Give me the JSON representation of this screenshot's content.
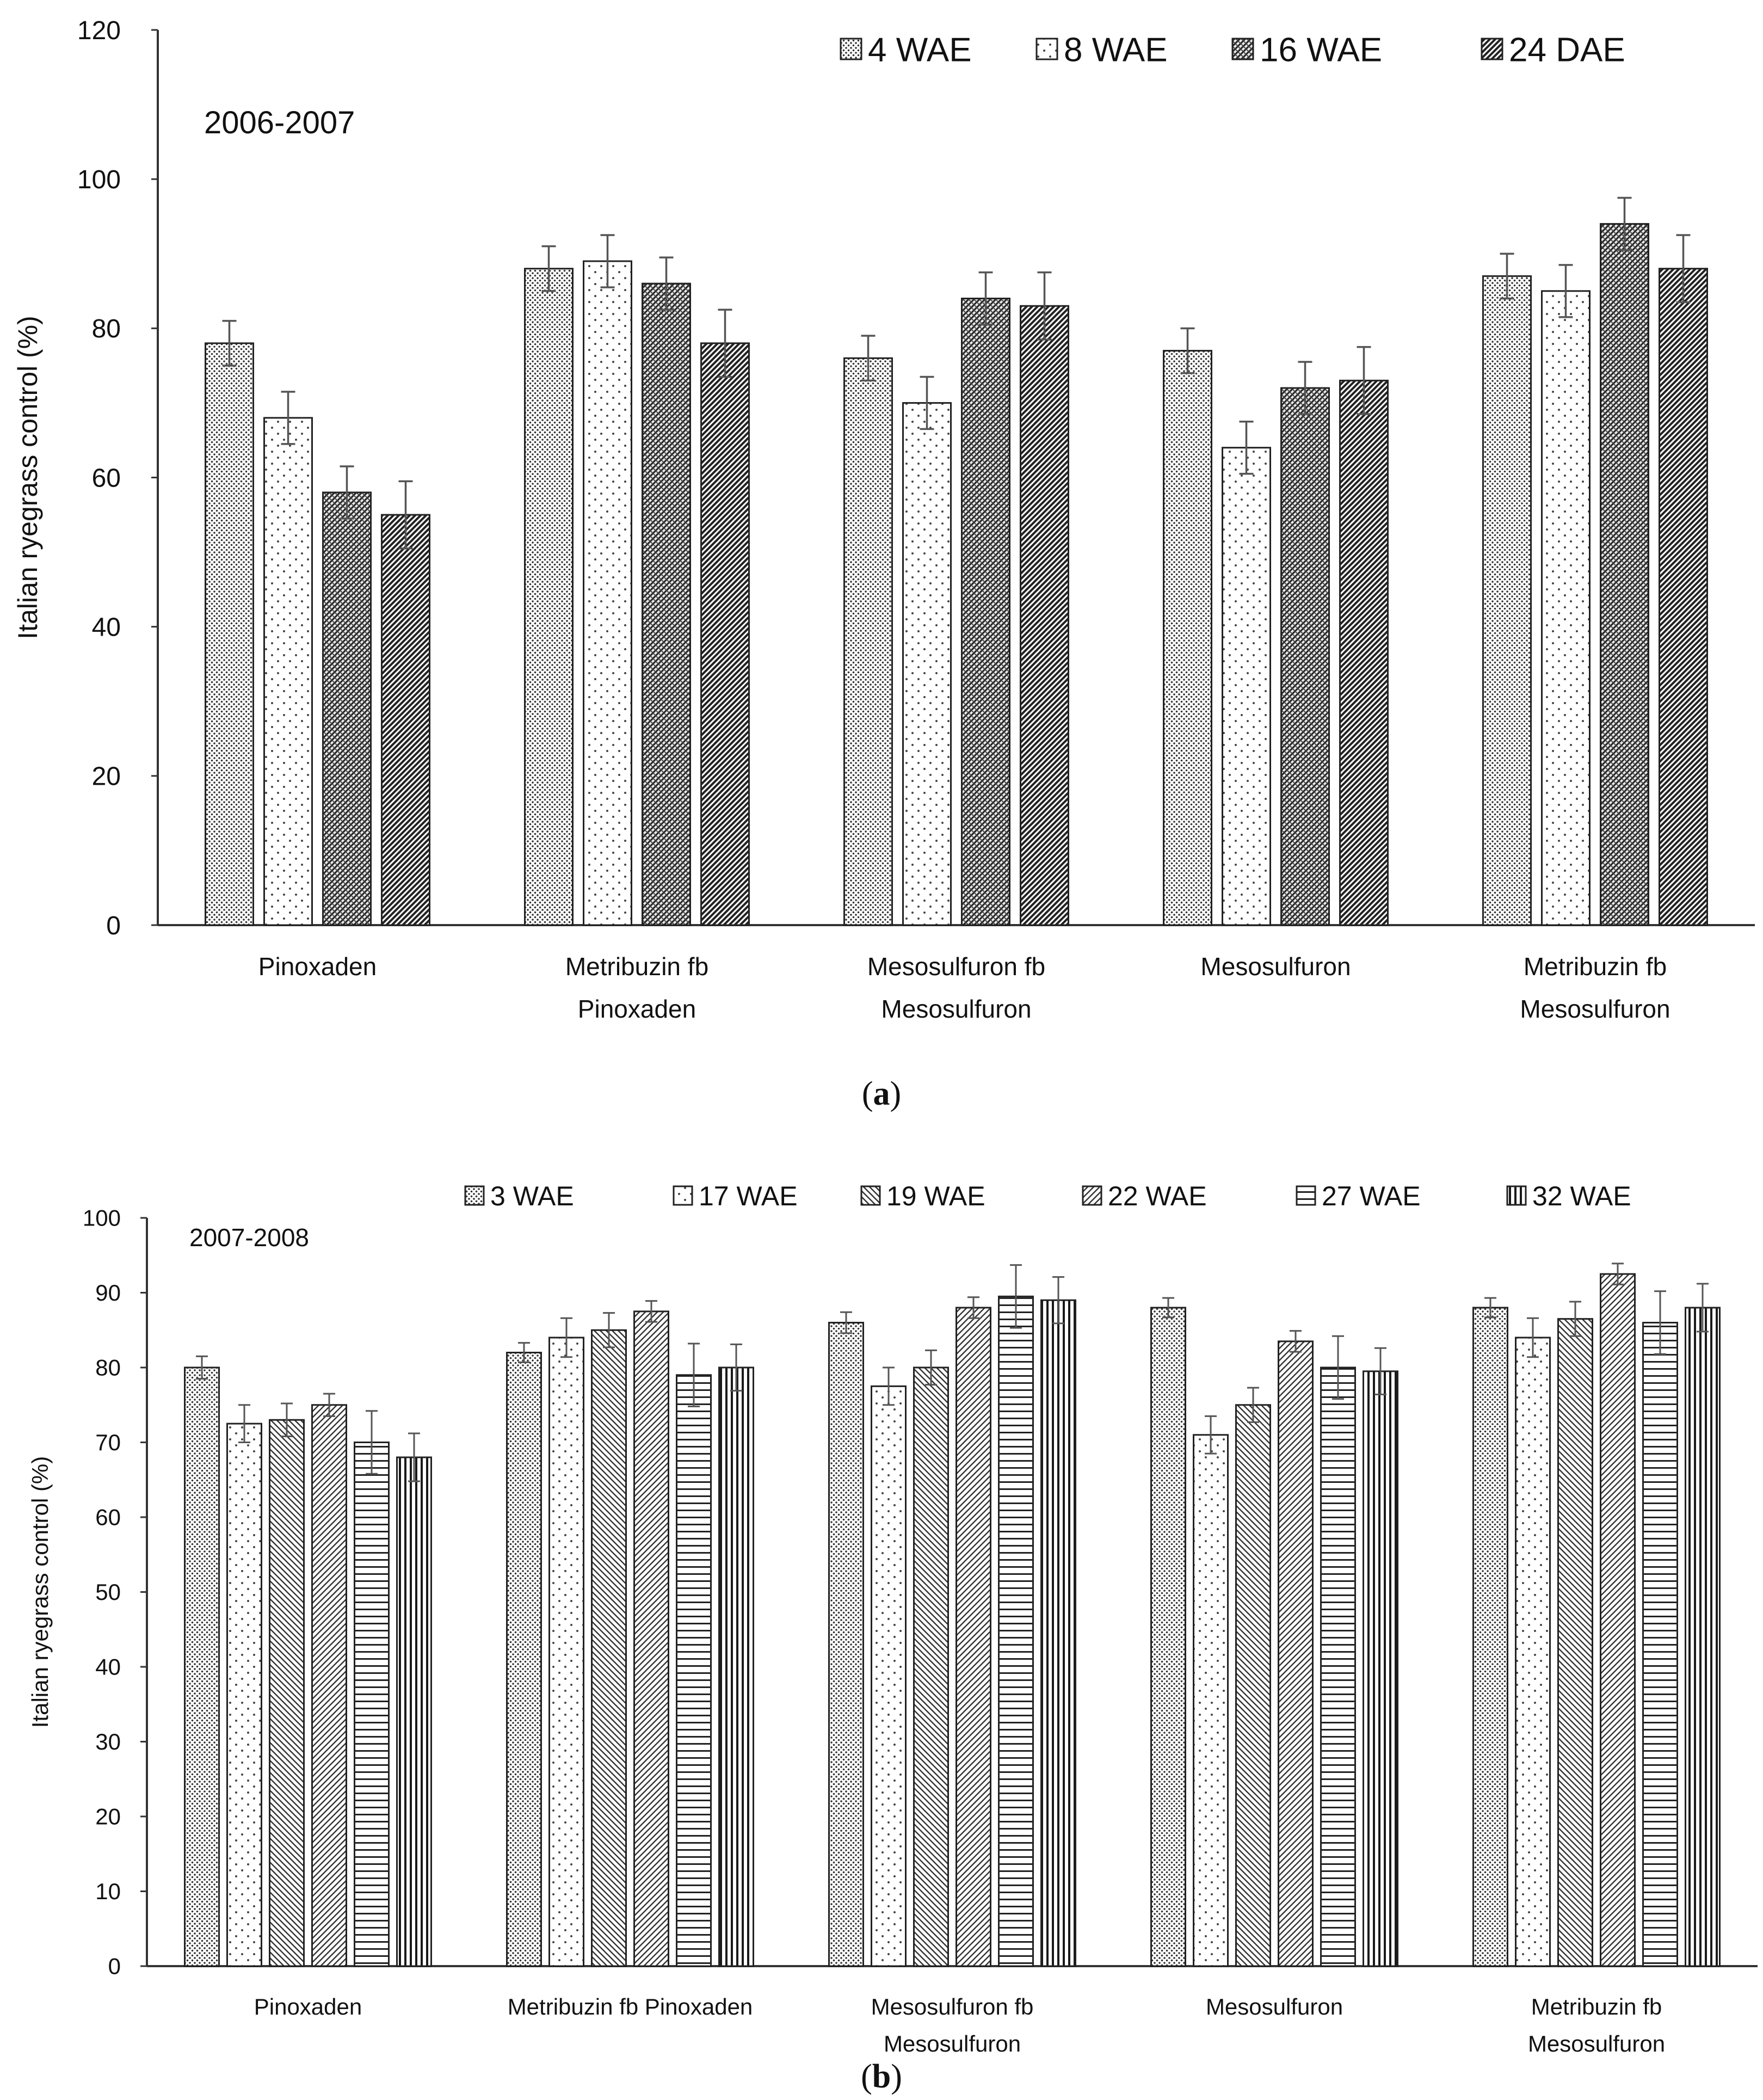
{
  "chart_data": [
    {
      "type": "bar",
      "panel_label": "(a)",
      "panel_letter": "a",
      "annotation": "2006-2007",
      "title": "",
      "xlabel": "",
      "ylabel": "Italian ryegrass control (%)",
      "ylim": [
        0,
        120
      ],
      "yticks": [
        0,
        20,
        40,
        60,
        80,
        100,
        120
      ],
      "grid": false,
      "legend_position": "top-right",
      "categories": [
        [
          "Pinoxaden"
        ],
        [
          "Metribuzin fb",
          "Pinoxaden"
        ],
        [
          "Mesosulfuron fb",
          "Mesosulfuron"
        ],
        [
          "Mesosulfuron"
        ],
        [
          "Metribuzin fb",
          "Mesosulfuron"
        ]
      ],
      "series": [
        {
          "name": "4 WAE",
          "pattern": "dots-dense",
          "values": [
            78,
            88,
            76,
            77,
            87
          ],
          "errors": [
            3,
            3,
            3,
            3,
            3
          ]
        },
        {
          "name": "8 WAE",
          "pattern": "dots-sparse",
          "values": [
            68,
            89,
            70,
            64,
            85
          ],
          "errors": [
            3.5,
            3.5,
            3.5,
            3.5,
            3.5
          ]
        },
        {
          "name": "16 WAE",
          "pattern": "crosshatch-dark",
          "values": [
            58,
            86,
            84,
            72,
            94
          ],
          "errors": [
            3.5,
            3.5,
            3.5,
            3.5,
            3.5
          ]
        },
        {
          "name": "24 DAE",
          "pattern": "diagonal-dark",
          "values": [
            55,
            78,
            83,
            73,
            88
          ],
          "errors": [
            4.5,
            4.5,
            4.5,
            4.5,
            4.5
          ]
        }
      ]
    },
    {
      "type": "bar",
      "panel_label": "(b)",
      "panel_letter": "b",
      "annotation": "2007-2008",
      "title": "",
      "xlabel": "",
      "ylabel": "Italian ryegrass control (%)",
      "ylim": [
        0,
        100
      ],
      "yticks": [
        0,
        10,
        20,
        30,
        40,
        50,
        60,
        70,
        80,
        90,
        100
      ],
      "grid": false,
      "legend_position": "top",
      "categories": [
        [
          "Pinoxaden"
        ],
        [
          "Metribuzin fb Pinoxaden"
        ],
        [
          "Mesosulfuron fb",
          "Mesosulfuron"
        ],
        [
          "Mesosulfuron"
        ],
        [
          "Metribuzin fb",
          "Mesosulfuron"
        ]
      ],
      "series": [
        {
          "name": "3 WAE",
          "pattern": "dots-dense",
          "values": [
            80,
            82,
            86,
            88,
            88
          ],
          "errors": [
            1.5,
            1.3,
            1.4,
            1.3,
            1.3
          ]
        },
        {
          "name": "17 WAE",
          "pattern": "dots-sparse",
          "values": [
            72.5,
            84,
            77.5,
            71,
            84
          ],
          "errors": [
            2.5,
            2.6,
            2.5,
            2.5,
            2.6
          ]
        },
        {
          "name": "19 WAE",
          "pattern": "diagonal-back",
          "values": [
            73,
            85,
            80,
            75,
            86.5
          ],
          "errors": [
            2.2,
            2.3,
            2.3,
            2.3,
            2.3
          ]
        },
        {
          "name": "22 WAE",
          "pattern": "diagonal-forward",
          "values": [
            75,
            87.5,
            88,
            83.5,
            92.5
          ],
          "errors": [
            1.5,
            1.4,
            1.4,
            1.4,
            1.4
          ]
        },
        {
          "name": "27 WAE",
          "pattern": "horizontal",
          "values": [
            70,
            79,
            89.5,
            80,
            86
          ],
          "errors": [
            4.2,
            4.2,
            4.2,
            4.2,
            4.2
          ]
        },
        {
          "name": "32 WAE",
          "pattern": "vertical",
          "values": [
            68,
            80,
            89,
            79.5,
            88
          ],
          "errors": [
            3.2,
            3.1,
            3.1,
            3.1,
            3.2
          ]
        }
      ]
    }
  ]
}
